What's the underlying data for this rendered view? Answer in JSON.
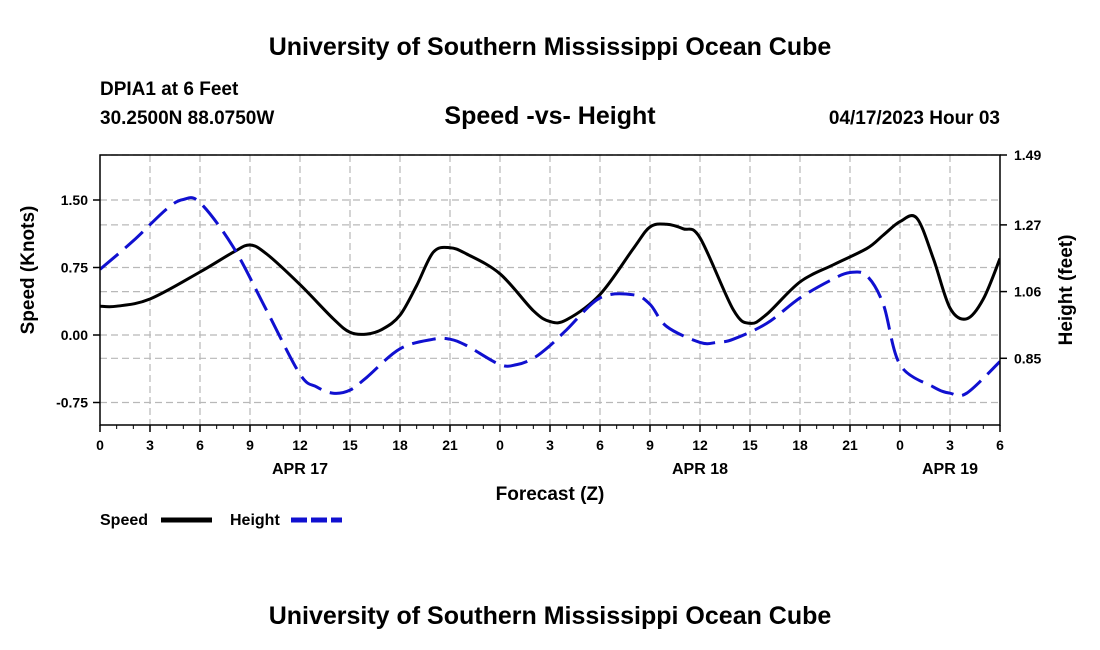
{
  "header": {
    "title": "University of Southern Mississippi Ocean Cube",
    "footer_title": "University of Southern Mississippi Ocean Cube",
    "station": "DPIA1 at 6 Feet",
    "location": "30.2500N  88.0750W",
    "datetime": "04/17/2023 Hour 03"
  },
  "colors": {
    "speed": "#000000",
    "height": "#1010d0",
    "grid": "#b8b8b8"
  },
  "chart_data": {
    "type": "line",
    "title": "Speed -vs- Height",
    "xlabel": "Forecast (Z)",
    "ylabel": "Speed (Knots)",
    "y2label": "Height (feet)",
    "x_range": [
      0,
      54
    ],
    "ylim": [
      -1.0,
      2.0
    ],
    "y2lim": [
      0.64,
      1.49
    ],
    "x_ticks": [
      0,
      3,
      6,
      9,
      12,
      15,
      18,
      21,
      24,
      27,
      30,
      33,
      36,
      39,
      42,
      45,
      48,
      51,
      54
    ],
    "x_tick_labels": [
      "0",
      "3",
      "6",
      "9",
      "12",
      "15",
      "18",
      "21",
      "0",
      "3",
      "6",
      "9",
      "12",
      "15",
      "18",
      "21",
      "0",
      "3",
      "6"
    ],
    "date_labels": [
      {
        "x": 12,
        "label": "APR 17"
      },
      {
        "x": 36,
        "label": "APR 18"
      },
      {
        "x": 51,
        "label": "APR 19"
      }
    ],
    "y_ticks": [
      1.5,
      0.75,
      0.0,
      -0.75
    ],
    "y_tick_labels": [
      "1.50",
      "0.75",
      "0.00",
      "-0.75"
    ],
    "y2_ticks": [
      1.49,
      1.27,
      1.06,
      0.85
    ],
    "y2_tick_labels": [
      "1.49",
      "1.27",
      "1.06",
      "0.85"
    ],
    "series": [
      {
        "name": "Speed",
        "axis": "left",
        "style": "solid",
        "x": [
          0,
          1,
          3,
          6,
          8,
          9,
          10,
          12,
          14,
          15,
          16,
          17,
          18,
          19,
          20,
          21,
          22,
          24,
          26,
          27,
          28,
          30,
          32,
          33,
          34,
          35,
          36,
          38,
          39,
          40,
          42,
          44,
          46,
          47,
          48,
          49,
          50,
          51,
          52,
          53,
          54
        ],
        "values": [
          0.32,
          0.32,
          0.4,
          0.7,
          0.92,
          1.0,
          0.9,
          0.56,
          0.18,
          0.03,
          0.01,
          0.07,
          0.22,
          0.55,
          0.92,
          0.97,
          0.9,
          0.68,
          0.27,
          0.15,
          0.17,
          0.45,
          0.96,
          1.2,
          1.23,
          1.18,
          1.08,
          0.28,
          0.13,
          0.23,
          0.59,
          0.78,
          0.96,
          1.11,
          1.26,
          1.3,
          0.85,
          0.3,
          0.18,
          0.4,
          0.85
        ]
      },
      {
        "name": "Height",
        "axis": "right",
        "style": "dashed",
        "x": [
          0,
          2,
          4,
          5,
          6,
          8,
          10,
          12,
          13,
          14,
          15,
          16,
          18,
          20,
          21,
          22,
          24,
          25,
          26,
          27,
          28,
          30,
          32,
          33,
          34,
          36,
          37,
          38,
          40,
          42,
          44,
          45,
          46,
          47,
          48,
          50,
          51,
          52,
          54
        ],
        "values": [
          1.13,
          1.22,
          1.32,
          1.35,
          1.34,
          1.2,
          1.0,
          0.8,
          0.76,
          0.74,
          0.75,
          0.79,
          0.88,
          0.91,
          0.91,
          0.89,
          0.83,
          0.83,
          0.85,
          0.89,
          0.94,
          1.04,
          1.05,
          1.02,
          0.95,
          0.9,
          0.9,
          0.91,
          0.96,
          1.04,
          1.1,
          1.12,
          1.11,
          1.02,
          0.83,
          0.76,
          0.74,
          0.74,
          0.84
        ]
      }
    ],
    "legend": [
      {
        "label": "Speed",
        "style": "solid"
      },
      {
        "label": "Height",
        "style": "dashed"
      }
    ]
  }
}
